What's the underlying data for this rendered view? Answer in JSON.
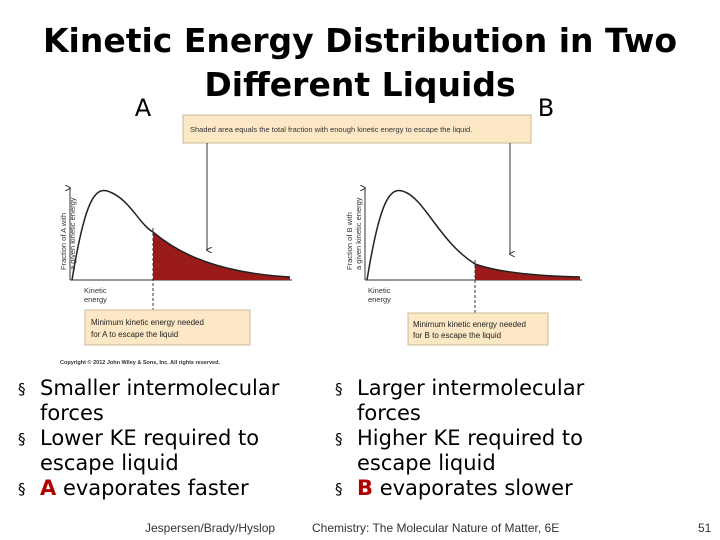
{
  "header": {
    "title_line1": "Kinetic Energy Distribution in Two",
    "title_line2": "Different Liquids",
    "label_a": "A",
    "label_b": "B"
  },
  "banner": "Shaded area equals the total fraction with enough kinetic energy to escape the liquid.",
  "panel_a": {
    "y_label_line1": "Fraction of A with",
    "y_label_line2": "a given kinetic energy",
    "x_label_line1": "Kinetic",
    "x_label_line2": "energy",
    "box_line1": "Minimum kinetic energy needed",
    "box_line2": "for A to escape the liquid"
  },
  "panel_b": {
    "y_label_line1": "Fraction of B with",
    "y_label_line2": "a given kinetic energy",
    "x_label_line1": "Kinetic",
    "x_label_line2": "energy",
    "box_line1": "Minimum kinetic energy needed",
    "box_line2": "for B to escape the liquid"
  },
  "copyright": "Copyright © 2012 John Wiley & Sons, Inc. All rights reserved.",
  "bullets_left": [
    {
      "text": "Smaller intermolecular forces"
    },
    {
      "text": "Lower KE required to escape liquid"
    },
    {
      "strong": "A",
      "text": " evaporates faster"
    }
  ],
  "bullets_right": [
    {
      "text": "Larger intermolecular forces"
    },
    {
      "text": "Higher KE required to escape liquid"
    },
    {
      "strong": "B",
      "text": " evaporates slower"
    }
  ],
  "footer": {
    "authors": "Jespersen/Brady/Hyslop",
    "book": "Chemistry: The Molecular Nature of Matter, 6E",
    "page": "51"
  }
}
